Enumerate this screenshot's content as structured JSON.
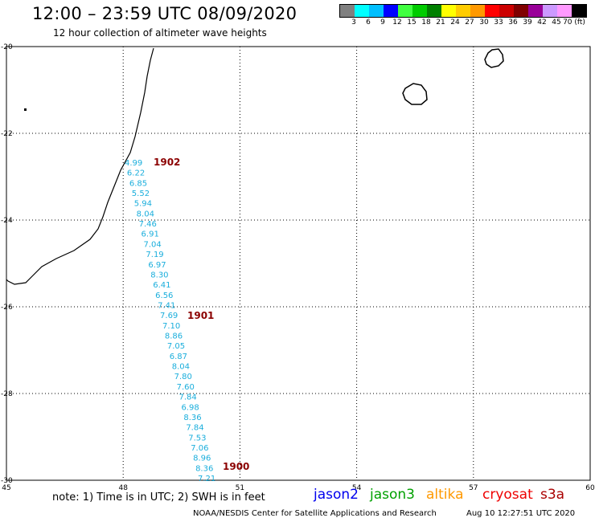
{
  "header": {
    "title": "12:00 – 23:59 UTC 08/09/2020",
    "subtitle": "12 hour collection of altimeter wave heights"
  },
  "colorbar": {
    "colors": [
      "#808080",
      "#00ffff",
      "#00bfff",
      "#0000ff",
      "#40ff40",
      "#00cc00",
      "#008000",
      "#ffff00",
      "#ffcc00",
      "#ff9900",
      "#ff0000",
      "#cc0000",
      "#800000",
      "#990099",
      "#cc99ff",
      "#ff99ff",
      "#000000"
    ],
    "labels": [
      "3",
      "6",
      "9",
      "12",
      "15",
      "18",
      "21",
      "24",
      "27",
      "30",
      "33",
      "36",
      "39",
      "42",
      "45",
      "70 (ft)"
    ]
  },
  "map": {
    "lon_ticks": [
      "45",
      "48",
      "51",
      "54",
      "57",
      "60"
    ],
    "lat_ticks": [
      "-20",
      "-22",
      "-24",
      "-26",
      "-28",
      "-30"
    ],
    "lon_range": [
      45,
      60
    ],
    "lat_range": [
      -30,
      -20
    ],
    "gridlines": true,
    "track_color": "#1aaedc",
    "time_color": "#8b0000",
    "swh_values": [
      "4.99",
      "6.22",
      "6.85",
      "5.52",
      "5.94",
      "8.04",
      "7.46",
      "6.91",
      "7.04",
      "7.19",
      "6.97",
      "8.30",
      "6.41",
      "6.56",
      "7.41",
      "7.69",
      "7.10",
      "8.86",
      "7.05",
      "6.87",
      "8.04",
      "7.80",
      "7.60",
      "7.84",
      "6.98",
      "8.36",
      "7.84",
      "7.53",
      "7.06",
      "8.96",
      "8.36",
      "7.21"
    ],
    "time_labels": [
      "1902",
      "1901",
      "1900"
    ]
  },
  "footer": {
    "note": "note: 1) Time is in UTC; 2) SWH is in feet",
    "satellites": [
      {
        "name": "jason2",
        "color": "#0000ee"
      },
      {
        "name": "jason3",
        "color": "#00a000"
      },
      {
        "name": "altika",
        "color": "#ff9900"
      },
      {
        "name": "cryosat",
        "color": "#ee0000"
      },
      {
        "name": "s3a",
        "color": "#aa0000"
      }
    ],
    "credit": "NOAA/NESDIS Center for Satellite Applications and Research",
    "timestamp": "Aug 10 12:27:51 UTC 2020"
  }
}
